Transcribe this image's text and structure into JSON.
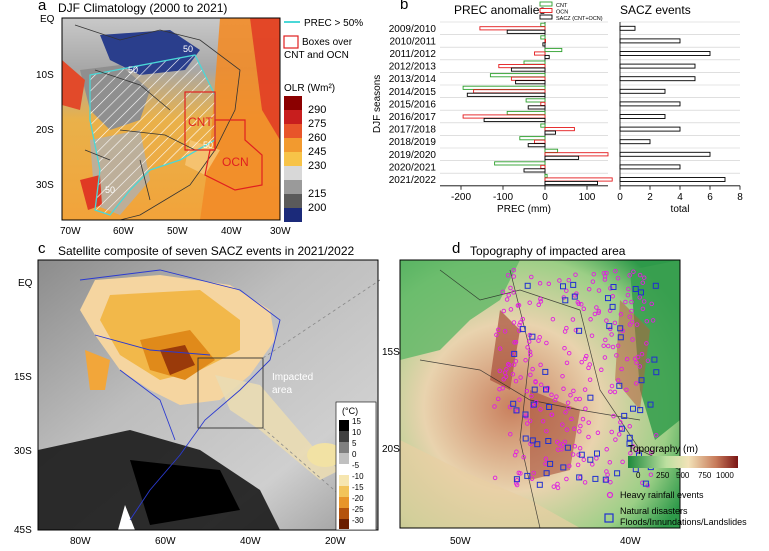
{
  "panel_a": {
    "letter": "a",
    "title": "DJF Climatology (2000 to 2021)",
    "legend_prec": "PREC > 50%",
    "legend_box_line1": "Boxes over",
    "legend_box_line2": "CNT and OCN",
    "colorbar_title": "OLR (Wm²)",
    "colorbar_ticks": [
      "290",
      "275",
      "260",
      "245",
      "230",
      "215",
      "200"
    ],
    "box_labels": [
      "CNT",
      "OCN"
    ],
    "contour_labels": [
      "50",
      "50",
      "50",
      "50"
    ],
    "lat_labels": [
      "EQ",
      "10S",
      "20S",
      "30S"
    ],
    "lon_labels": [
      "70W",
      "60W",
      "50W",
      "40W",
      "30W"
    ]
  },
  "panel_b": {
    "letter": "b",
    "title_left": "PREC anomalies",
    "title_right": "SACZ events",
    "legend": [
      "CNT",
      "OCN",
      "SACZ (CNT+OCN)"
    ]
  },
  "panel_c": {
    "letter": "c",
    "title": "Satellite composite of seven SACZ events in 2021/2022",
    "impacted_line1": "Impacted",
    "impacted_line2": "area",
    "colorbar_title": "(°C)",
    "colorbar_ticks": [
      "15",
      "10",
      "5",
      "0",
      "-5",
      "-10",
      "-15",
      "-20",
      "-25",
      "-30"
    ],
    "lat_labels": [
      "EQ",
      "15S",
      "30S",
      "45S"
    ],
    "lon_labels": [
      "80W",
      "60W",
      "40W",
      "20W"
    ]
  },
  "panel_d": {
    "letter": "d",
    "title": "Topography of impacted area",
    "topo_title": "Topography (m)",
    "topo_ticks": [
      "0",
      "250",
      "500",
      "750",
      "1000"
    ],
    "legend_rain": "Heavy rainfall events",
    "legend_dis_line1": "Natural disasters",
    "legend_dis_line2": "Floods/Innundations/Landslides",
    "lat_labels": [
      "15S",
      "20S"
    ],
    "lon_labels": [
      "50W",
      "40W"
    ]
  },
  "chart_data": {
    "type": "bar",
    "categories": [
      "2009/2010",
      "2010/2011",
      "2011/2012",
      "2012/2013",
      "2013/2014",
      "2014/2015",
      "2015/2016",
      "2016/2017",
      "2017/2018",
      "2018/2019",
      "2019/2020",
      "2020/2021",
      "2021/2022"
    ],
    "ylabel": "DJF seasons",
    "panels": [
      {
        "title": "PREC anomalies",
        "xlabel": "PREC (mm)",
        "xlim": [
          -250,
          150
        ],
        "xticks": [
          -200,
          -100,
          0,
          100
        ],
        "series": [
          {
            "name": "CNT",
            "color": "#2ca02c",
            "values": [
              -10,
              -10,
              40,
              -50,
              -130,
              -195,
              -45,
              -90,
              -10,
              -60,
              30,
              -120,
              5
            ]
          },
          {
            "name": "OCN",
            "color": "#e41a1c",
            "values": [
              -155,
              0,
              -25,
              -110,
              -80,
              -170,
              -10,
              -195,
              70,
              -25,
              150,
              -10,
              160
            ]
          },
          {
            "name": "SACZ (CNT+OCN)",
            "color": "#000000",
            "values": [
              -90,
              -5,
              10,
              -80,
              -70,
              -185,
              -40,
              -145,
              25,
              -40,
              80,
              -50,
              125
            ]
          }
        ]
      },
      {
        "title": "SACZ events",
        "xlabel": "total",
        "xlim": [
          0,
          8
        ],
        "xticks": [
          0,
          2,
          4,
          6,
          8
        ],
        "series": [
          {
            "name": "SACZ events",
            "color": "#000000",
            "values": [
              1,
              4,
              6,
              5,
              5,
              3,
              4,
              3,
              4,
              2,
              6,
              4,
              7
            ]
          }
        ]
      }
    ]
  }
}
